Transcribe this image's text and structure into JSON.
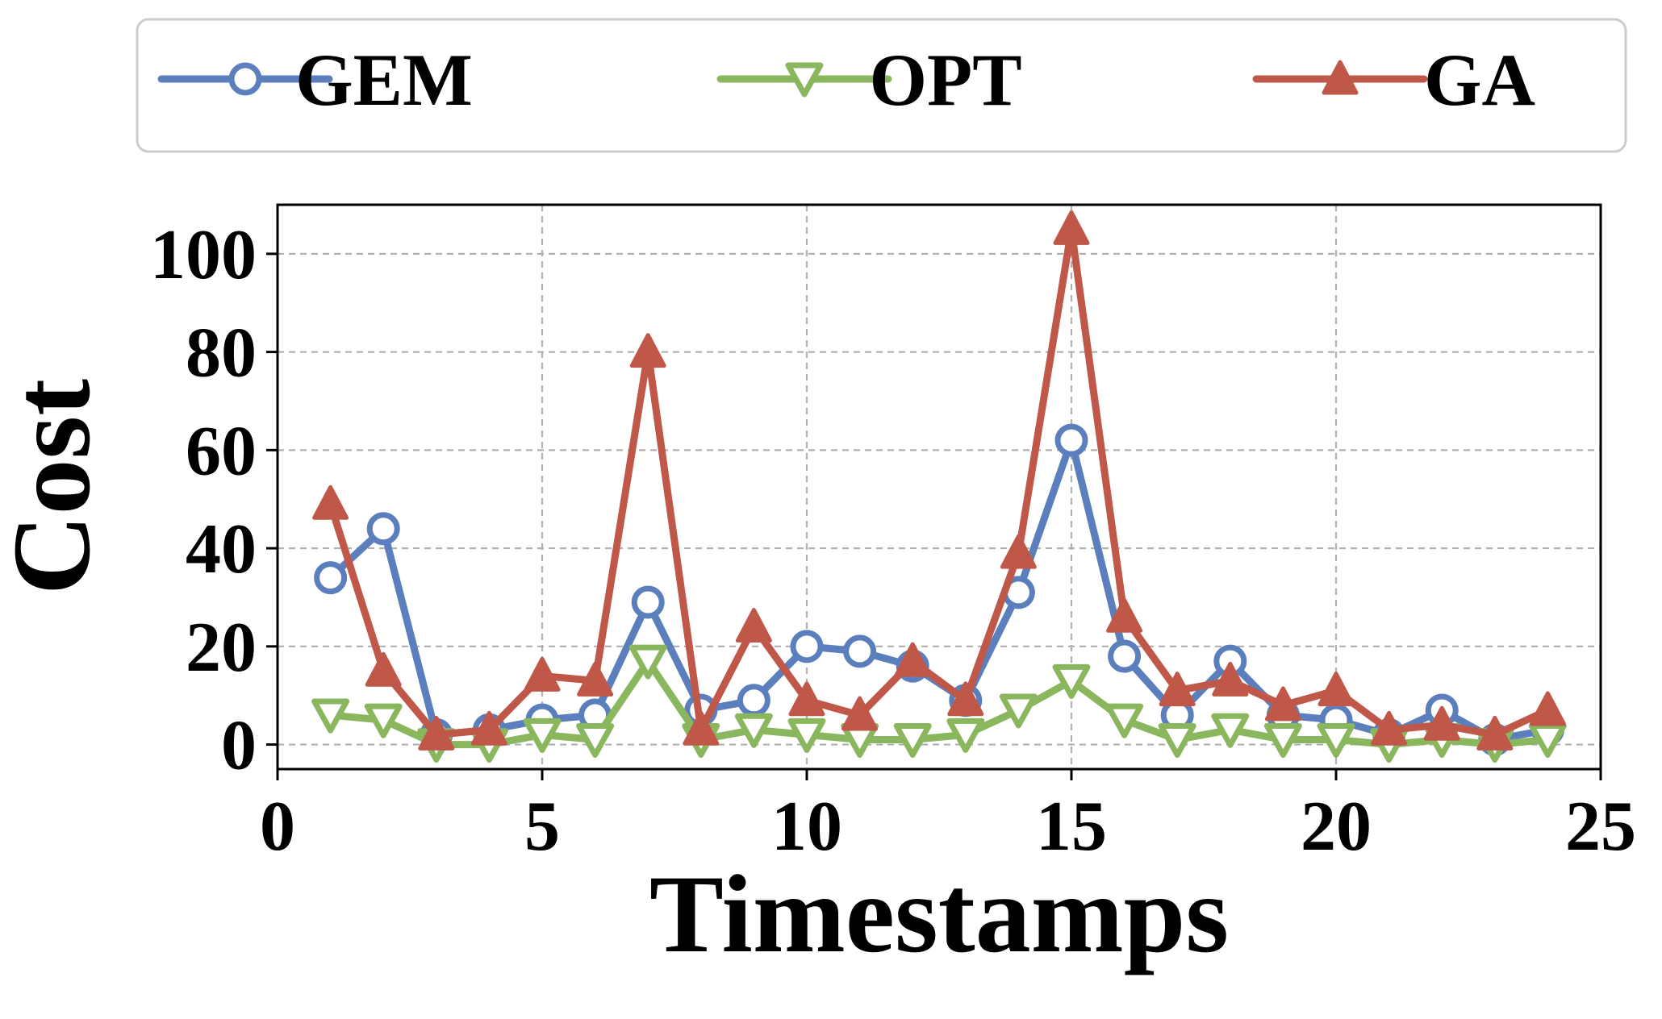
{
  "chart_data": {
    "type": "line",
    "title": "",
    "xlabel": "Timestamps",
    "ylabel": "Cost",
    "xlim": [
      0,
      25
    ],
    "ylim": [
      -5,
      110
    ],
    "xticks": [
      0,
      5,
      10,
      15,
      20,
      25
    ],
    "yticks": [
      0,
      20,
      40,
      60,
      80,
      100
    ],
    "grid": true,
    "legend_position": "top",
    "x": [
      1,
      2,
      3,
      4,
      5,
      6,
      7,
      8,
      9,
      10,
      11,
      12,
      13,
      14,
      15,
      16,
      17,
      18,
      19,
      20,
      21,
      22,
      23,
      24
    ],
    "series": [
      {
        "name": "GEM",
        "color": "#5b7fbd",
        "marker": "circle",
        "values": [
          34,
          44,
          2,
          3,
          5,
          6,
          29,
          7,
          9,
          20,
          19,
          16,
          9,
          31,
          62,
          18,
          6,
          17,
          6,
          5,
          2,
          7,
          1,
          3
        ]
      },
      {
        "name": "OPT",
        "color": "#8ab65d",
        "marker": "triangle-down",
        "values": [
          6,
          5,
          0,
          0,
          2,
          1,
          17,
          1,
          3,
          2,
          1,
          1,
          2,
          7,
          13,
          5,
          1,
          3,
          1,
          1,
          0,
          1,
          0,
          1
        ]
      },
      {
        "name": "GA",
        "color": "#c0584a",
        "marker": "triangle-up",
        "values": [
          49,
          15,
          2,
          3,
          14,
          13,
          80,
          3,
          24,
          9,
          6,
          17,
          9,
          39,
          105,
          26,
          11,
          13,
          8,
          11,
          3,
          4,
          2,
          7
        ]
      }
    ]
  }
}
